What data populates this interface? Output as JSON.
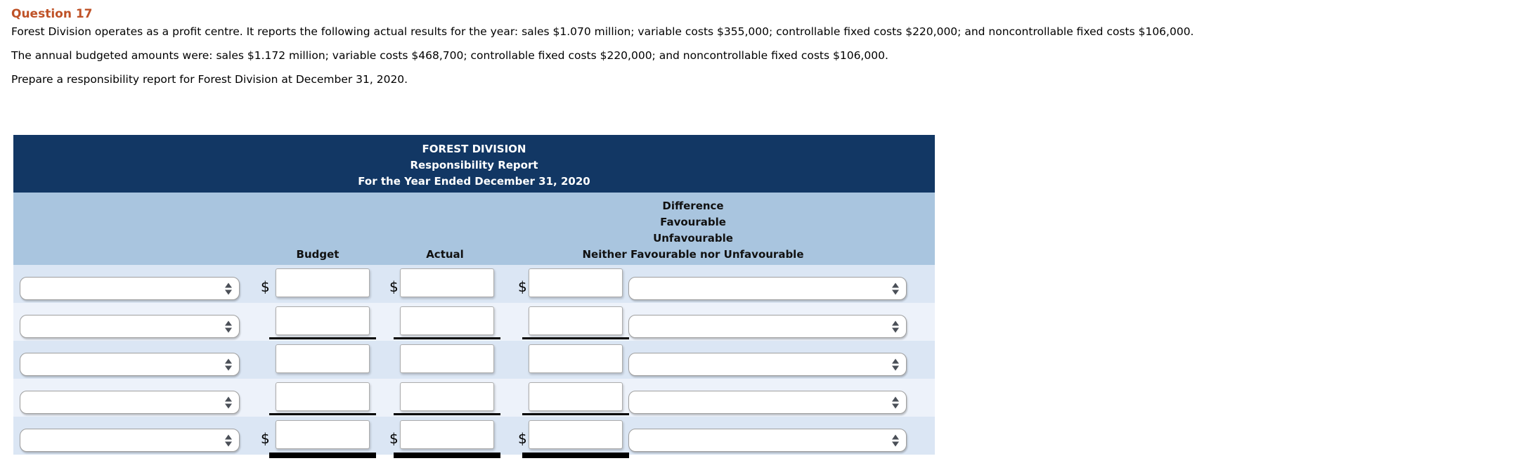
{
  "question": {
    "label": "Question 17"
  },
  "paragraphs": {
    "p1": "Forest Division operates as a profit centre. It reports the following actual results for the year: sales $1.070 million; variable costs $355,000; controllable fixed costs $220,000; and noncontrollable fixed costs $106,000.",
    "p2": "The annual budgeted amounts were: sales $1.172 million; variable costs $468,700; controllable fixed costs $220,000; and noncontrollable fixed costs $106,000.",
    "p3": "Prepare a responsibility report for Forest Division at December 31, 2020."
  },
  "report": {
    "title_line1": "FOREST DIVISION",
    "title_line2": "Responsibility Report",
    "title_line3": "For the Year Ended December 31, 2020",
    "col_budget": "Budget",
    "col_actual": "Actual",
    "diff_line1": "Difference",
    "diff_line2": "Favourable",
    "diff_line3": "Unfavourable",
    "diff_line4": "Neither Favourable nor Unfavourable",
    "currency_symbol": "$",
    "rows": [
      {
        "label_select_value": "",
        "budget_value": "",
        "actual_value": "",
        "difference_value": "",
        "difference_select_value": "",
        "show_dollar": true,
        "rule": "none"
      },
      {
        "label_select_value": "",
        "budget_value": "",
        "actual_value": "",
        "difference_value": "",
        "difference_select_value": "",
        "show_dollar": false,
        "rule": "single"
      },
      {
        "label_select_value": "",
        "budget_value": "",
        "actual_value": "",
        "difference_value": "",
        "difference_select_value": "",
        "show_dollar": false,
        "rule": "none"
      },
      {
        "label_select_value": "",
        "budget_value": "",
        "actual_value": "",
        "difference_value": "",
        "difference_select_value": "",
        "show_dollar": false,
        "rule": "single"
      },
      {
        "label_select_value": "",
        "budget_value": "",
        "actual_value": "",
        "difference_value": "",
        "difference_select_value": "",
        "show_dollar": true,
        "rule": "double"
      }
    ]
  },
  "colors": {
    "accent": "#bf5227",
    "navy_header": "#123764",
    "column_header_blue": "#a9c5df",
    "row_odd": "#dbe6f4",
    "row_even": "#edf2fa"
  }
}
